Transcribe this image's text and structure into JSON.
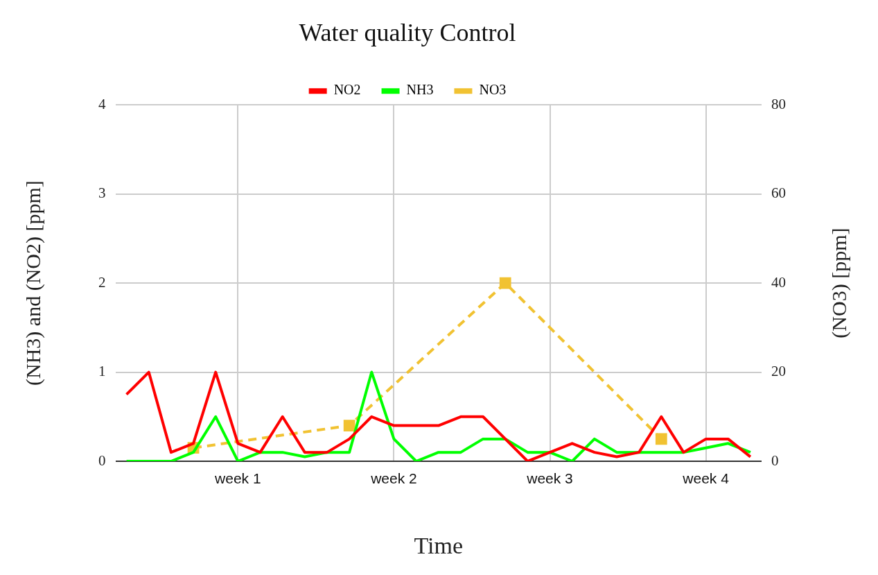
{
  "chart_data": {
    "type": "line",
    "title": "Water quality Control",
    "xlabel": "Time",
    "ylabel": "(NH3) and (NO2) [ppm]",
    "y2label": "(NO3) [ppm]",
    "categories": [
      null,
      null,
      null,
      null,
      null,
      "week 1",
      null,
      null,
      null,
      null,
      null,
      null,
      "week 2",
      null,
      null,
      null,
      null,
      null,
      null,
      "week 3",
      null,
      null,
      null,
      null,
      null,
      null,
      "week 4",
      null,
      null
    ],
    "ylim": [
      0,
      4
    ],
    "yticks": [
      0,
      1,
      2,
      3,
      4
    ],
    "y2lim": [
      0,
      80
    ],
    "y2ticks": [
      0,
      20,
      40,
      60,
      80
    ],
    "grid": true,
    "legend": "top",
    "series": [
      {
        "name": "NO2",
        "color": "#ff0000",
        "marker": "none",
        "line_style": "solid",
        "values": [
          0.75,
          1,
          0.1,
          0.2,
          1,
          0.2,
          0.1,
          0.5,
          0.1,
          0.1,
          0.25,
          0.5,
          0.4,
          0.4,
          0.4,
          0.5,
          0.5,
          0.25,
          0,
          0.1,
          0.2,
          0.1,
          0.05,
          0.1,
          0.5,
          0.1,
          0.25,
          0.25,
          0.05
        ]
      },
      {
        "name": "NH3",
        "color": "#00ff00",
        "marker": "none",
        "line_style": "solid",
        "values": [
          0,
          0,
          0,
          0.1,
          0.5,
          0,
          0.1,
          0.1,
          0.05,
          0.1,
          0.1,
          1,
          0.25,
          0,
          0.1,
          0.1,
          0.25,
          0.25,
          0.1,
          0.1,
          0,
          0.25,
          0.1,
          0.1,
          0.1,
          0.1,
          0.15,
          0.2,
          0.1
        ]
      },
      {
        "name": "NO3",
        "color": "#f1c232",
        "axis": "y2",
        "marker": "square",
        "line_style": "dashed",
        "values": [
          null,
          null,
          null,
          3,
          null,
          null,
          null,
          null,
          null,
          null,
          8,
          null,
          null,
          null,
          null,
          null,
          null,
          40,
          null,
          null,
          null,
          null,
          null,
          null,
          5,
          null,
          null,
          null,
          null
        ]
      }
    ]
  }
}
